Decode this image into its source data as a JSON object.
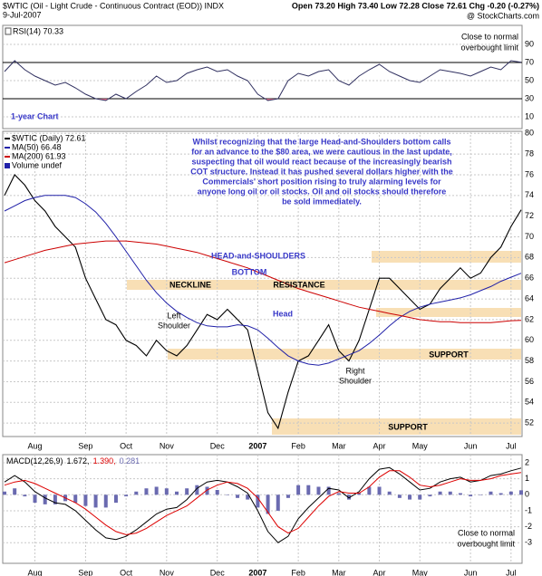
{
  "header": {
    "symbol_title": "$WTIC (Oil - Light Crude - Continuous Contract (EOD)) INDX",
    "date": "9-Jul-2007",
    "quote": "Open 73.20 High 73.40 Low 72.28 Close 72.61 Chg -0.20 (-0.27%)",
    "source": "@ StockCharts.com"
  },
  "chart_data": [
    {
      "type": "line",
      "ylim": [
        -3,
        111
      ],
      "yticks": [
        10,
        30,
        50,
        70,
        90
      ],
      "grid": true,
      "levels": [
        70,
        30
      ],
      "oversold_fill": "#e07088",
      "annotations": {
        "period": "1-year Chart",
        "note": [
          "Close to normal",
          "overbought limit"
        ]
      },
      "series": [
        {
          "name": "RSI(14) 70.33",
          "color": "#303060",
          "values": [
            60,
            72,
            62,
            55,
            50,
            45,
            48,
            42,
            35,
            30,
            28,
            35,
            30,
            38,
            45,
            55,
            48,
            50,
            58,
            62,
            65,
            60,
            62,
            55,
            50,
            35,
            28,
            30,
            50,
            58,
            55,
            60,
            62,
            50,
            45,
            55,
            62,
            68,
            60,
            55,
            50,
            48,
            55,
            62,
            60,
            58,
            55,
            60,
            65,
            62,
            72,
            70.33
          ]
        }
      ]
    },
    {
      "type": "line",
      "ylim": [
        50.7,
        80.2
      ],
      "yticks": [
        52,
        54,
        56,
        58,
        60,
        62,
        64,
        66,
        68,
        70,
        72,
        74,
        76,
        78,
        80
      ],
      "grid": true,
      "categories": [
        null,
        null,
        null,
        "Aug",
        null,
        null,
        null,
        null,
        "Sep",
        null,
        null,
        null,
        "Oct",
        null,
        null,
        null,
        "Nov",
        null,
        null,
        null,
        null,
        "Dec",
        null,
        null,
        null,
        "2007",
        null,
        null,
        null,
        "Feb",
        null,
        null,
        null,
        "Mar",
        null,
        null,
        null,
        "Apr",
        null,
        null,
        null,
        "May",
        null,
        null,
        null,
        null,
        "Jun",
        null,
        null,
        null,
        "Jul",
        null
      ],
      "legend_extra": "Volume undef",
      "annotations": {
        "commentary": [
          "Whilst recognizing that the large Head-and-Shoulders bottom calls",
          "for an advance to the $80 area, we were cautious in the last update,",
          "suspecting that oil would react because of the increasingly bearish",
          "COT structure. Instead it has pushed several dollars higher with the",
          "Commercials' short position rising to truly alarming levels for",
          "anyone long oil or oil stocks. Oil and oil stocks should therefore",
          "be sold immediately."
        ],
        "pattern_title": [
          "HEAD-and-SHOULDERS",
          "BOTTOM"
        ],
        "neckline": "NECKLINE",
        "resistance": "RESISTANCE",
        "left_shoulder": [
          "Left",
          "Shoulder"
        ],
        "head": "Head",
        "right_shoulder": [
          "Right",
          "Shoulder"
        ],
        "support": [
          "SUPPORT",
          "SUPPORT"
        ]
      },
      "series": [
        {
          "name": "$WTIC (Daily) 72.61",
          "color": "#000000",
          "values": [
            74,
            76,
            75,
            73.5,
            72.5,
            71,
            70,
            69,
            66,
            64,
            62,
            61.5,
            60,
            59.5,
            58.5,
            60,
            59,
            58.5,
            59.5,
            61,
            62.5,
            62,
            63,
            62,
            61,
            57,
            53,
            51.5,
            55,
            58,
            58.5,
            60,
            61.5,
            59,
            58,
            60,
            63,
            66,
            66,
            65,
            64,
            63,
            63.5,
            65,
            66,
            67,
            66,
            66.5,
            68,
            69,
            71,
            72.61
          ]
        },
        {
          "name": "MA(50) 66.48",
          "color": "#2020a8",
          "values": [
            72.5,
            73,
            73.5,
            73.8,
            74,
            74,
            74,
            73.8,
            73.2,
            72.4,
            71.3,
            70,
            68.6,
            67.2,
            65.8,
            64.6,
            63.6,
            62.8,
            62.2,
            61.7,
            61.4,
            61.3,
            61.3,
            61.5,
            61.4,
            61,
            60.2,
            59.3,
            58.5,
            58,
            57.7,
            57.6,
            57.8,
            58.2,
            58.6,
            59,
            59.7,
            60.5,
            61.4,
            62.2,
            62.8,
            63.2,
            63.5,
            63.7,
            63.9,
            64.1,
            64.4,
            64.8,
            65.2,
            65.7,
            66.1,
            66.48
          ]
        },
        {
          "name": "MA(200) 61.93",
          "color": "#cc0000",
          "values": [
            67.5,
            67.8,
            68.1,
            68.4,
            68.7,
            68.9,
            69.1,
            69.3,
            69.4,
            69.5,
            69.6,
            69.6,
            69.6,
            69.5,
            69.4,
            69.3,
            69.1,
            68.9,
            68.7,
            68.5,
            68.2,
            67.9,
            67.6,
            67.3,
            67,
            66.6,
            66.2,
            65.8,
            65.4,
            65,
            64.7,
            64.4,
            64.1,
            63.8,
            63.5,
            63.2,
            63,
            62.8,
            62.6,
            62.4,
            62.2,
            62,
            61.9,
            61.8,
            61.8,
            61.7,
            61.7,
            61.7,
            61.7,
            61.8,
            61.9,
            61.93
          ]
        }
      ]
    },
    {
      "type": "line",
      "ylim": [
        -4.29,
        2.51
      ],
      "yticks": [
        2,
        1,
        0,
        -1,
        -2,
        -3
      ],
      "grid": true,
      "categories": [
        null,
        null,
        null,
        "Aug",
        null,
        null,
        null,
        null,
        "Sep",
        null,
        null,
        null,
        "Oct",
        null,
        null,
        null,
        "Nov",
        null,
        null,
        null,
        null,
        "Dec",
        null,
        null,
        null,
        "2007",
        null,
        null,
        null,
        "Feb",
        null,
        null,
        null,
        "Mar",
        null,
        null,
        null,
        "Apr",
        null,
        null,
        null,
        "May",
        null,
        null,
        null,
        null,
        "Jun",
        null,
        null,
        null,
        "Jul",
        null
      ],
      "legend_label": "MACD(12,26,9)",
      "annotations": {
        "note": [
          "Close to normal",
          "overbought limit"
        ]
      },
      "series": [
        {
          "name": "0.281",
          "color": "#6a6ab0",
          "style": "bar",
          "values": [
            0.2,
            0.4,
            -0.1,
            -0.5,
            -0.6,
            -0.6,
            -0.4,
            -0.5,
            -0.7,
            -0.8,
            -0.8,
            -0.5,
            -0.1,
            0.2,
            0.4,
            0.5,
            0.4,
            0.2,
            0.4,
            0.6,
            0.5,
            0.3,
            0,
            -0.2,
            -0.3,
            -0.8,
            -1.2,
            -1,
            -0.2,
            0.6,
            0.6,
            0.5,
            0.5,
            0.1,
            -0.3,
            0.1,
            0.5,
            0.5,
            0.2,
            -0.2,
            -0.3,
            -0.3,
            -0.1,
            0.2,
            0.2,
            0.1,
            -0.1,
            0,
            0.2,
            0.1,
            0.2,
            0.281
          ]
        },
        {
          "name": "1.672,",
          "color": "#000000",
          "values": [
            0.8,
            1.2,
            0.8,
            0.2,
            -0.2,
            -0.5,
            -0.6,
            -1,
            -1.6,
            -2.2,
            -2.7,
            -2.8,
            -2.6,
            -2.2,
            -1.7,
            -1.2,
            -0.9,
            -0.8,
            -0.3,
            0.4,
            0.8,
            0.9,
            0.8,
            0.5,
            0.1,
            -1,
            -2.3,
            -3,
            -2.6,
            -1.5,
            -0.8,
            -0.2,
            0.4,
            0.3,
            -0.2,
            0.2,
            1,
            1.6,
            1.7,
            1.3,
            0.8,
            0.3,
            0.4,
            0.8,
            1,
            1.1,
            0.8,
            0.9,
            1.2,
            1.3,
            1.5,
            1.672
          ]
        },
        {
          "name": "1.390,",
          "color": "#dd0000",
          "values": [
            0.6,
            0.8,
            0.9,
            0.7,
            0.4,
            0.1,
            -0.2,
            -0.5,
            -0.9,
            -1.4,
            -1.9,
            -2.3,
            -2.5,
            -2.4,
            -2.1,
            -1.7,
            -1.3,
            -1,
            -0.7,
            -0.2,
            0.3,
            0.6,
            0.8,
            0.7,
            0.4,
            -0.2,
            -1.1,
            -2,
            -2.4,
            -2.1,
            -1.4,
            -0.7,
            -0.1,
            0.2,
            0.1,
            0.1,
            0.5,
            1.1,
            1.5,
            1.5,
            1.1,
            0.6,
            0.5,
            0.6,
            0.8,
            1,
            0.9,
            0.9,
            1,
            1.2,
            1.3,
            1.39
          ]
        }
      ]
    }
  ]
}
